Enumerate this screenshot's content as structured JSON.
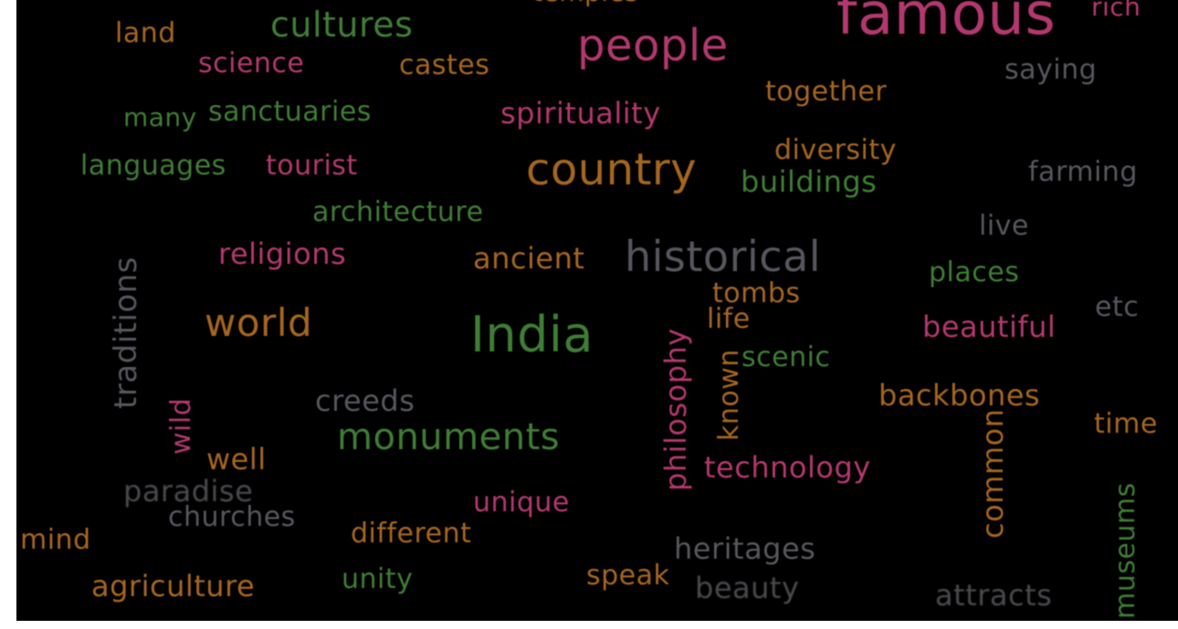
{
  "colors": {
    "background": "#000000",
    "magenta": "#b3386e",
    "green": "#3f7d35",
    "orange": "#a5661f",
    "gray": "#56565d"
  },
  "words": {
    "temples": "temples",
    "famous": "famous",
    "rich": "rich",
    "land": "land",
    "cultures": "cultures",
    "people": "people",
    "science": "science",
    "castes": "castes",
    "saying": "saying",
    "together": "together",
    "many": "many",
    "sanctuaries": "sanctuaries",
    "spirituality": "spirituality",
    "languages": "languages",
    "tourist": "tourist",
    "country": "country",
    "diversity": "diversity",
    "buildings": "buildings",
    "farming": "farming",
    "architecture": "architecture",
    "traditions": "traditions",
    "religions": "religions",
    "ancient": "ancient",
    "historical": "historical",
    "live": "live",
    "places": "places",
    "tombs": "tombs",
    "world": "world",
    "india": "India",
    "philosophy": "philosophy",
    "life": "life",
    "etc": "etc",
    "beautiful": "beautiful",
    "known": "known",
    "scenic": "scenic",
    "wild": "wild",
    "creeds": "creeds",
    "backbones": "backbones",
    "monuments": "monuments",
    "common": "common",
    "time": "time",
    "well": "well",
    "technology": "technology",
    "paradise": "paradise",
    "unique": "unique",
    "museums": "museums",
    "churches": "churches",
    "mind": "mind",
    "different": "different",
    "heritages": "heritages",
    "agriculture": "agriculture",
    "unity": "unity",
    "speak": "speak",
    "beauty": "beauty",
    "attracts": "attracts"
  }
}
